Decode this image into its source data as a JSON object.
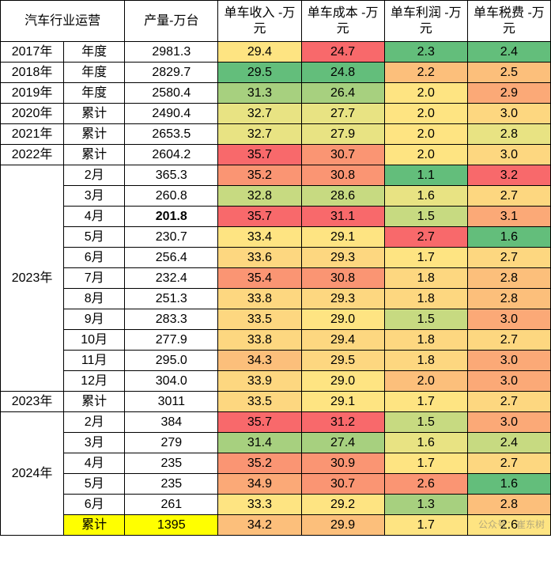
{
  "header": {
    "title_main": "汽车行业运营",
    "col_prod": "产量-万台",
    "col_rev": "单车收入\n-万元",
    "col_cost": "单车成本\n-万元",
    "col_profit": "单车利润\n-万元",
    "col_tax": "单车税费\n-万元"
  },
  "colors": {
    "heat": {
      "g1": "#63BE7B",
      "g2": "#86C77D",
      "g3": "#A7D07F",
      "g4": "#C7DA81",
      "g5": "#E8E383",
      "y1": "#FEE482",
      "y2": "#FDD780",
      "o1": "#FCBF7B",
      "o2": "#FBA977",
      "o3": "#FA9573",
      "r1": "#F8696B"
    }
  },
  "rows": [
    {
      "year": "2017年",
      "period": "年度",
      "prod": "2981.3",
      "rev": {
        "v": "29.4",
        "c": "y1"
      },
      "cost": {
        "v": "24.7",
        "c": "r1"
      },
      "profit": {
        "v": "2.3",
        "c": "g1"
      },
      "tax": {
        "v": "2.4",
        "c": "g1"
      }
    },
    {
      "year": "2018年",
      "period": "年度",
      "prod": "2829.7",
      "rev": {
        "v": "29.5",
        "c": "g1"
      },
      "cost": {
        "v": "24.8",
        "c": "g1"
      },
      "profit": {
        "v": "2.2",
        "c": "o1"
      },
      "tax": {
        "v": "2.5",
        "c": "o1"
      }
    },
    {
      "year": "2019年",
      "period": "年度",
      "prod": "2580.4",
      "rev": {
        "v": "31.3",
        "c": "g3"
      },
      "cost": {
        "v": "26.4",
        "c": "g3"
      },
      "profit": {
        "v": "2.0",
        "c": "y1"
      },
      "tax": {
        "v": "2.9",
        "c": "o2"
      }
    },
    {
      "year": "2020年",
      "period": "累计",
      "prod": "2490.4",
      "rev": {
        "v": "32.7",
        "c": "g5"
      },
      "cost": {
        "v": "27.7",
        "c": "g5"
      },
      "profit": {
        "v": "2.0",
        "c": "y1"
      },
      "tax": {
        "v": "3.0",
        "c": "y2"
      }
    },
    {
      "year": "2021年",
      "period": "累计",
      "prod": "2653.5",
      "rev": {
        "v": "32.7",
        "c": "g5"
      },
      "cost": {
        "v": "27.9",
        "c": "g5"
      },
      "profit": {
        "v": "2.0",
        "c": "y1"
      },
      "tax": {
        "v": "2.8",
        "c": "g5"
      }
    },
    {
      "year": "2022年",
      "period": "累计",
      "prod": "2604.2",
      "rev": {
        "v": "35.7",
        "c": "r1"
      },
      "cost": {
        "v": "30.7",
        "c": "o3"
      },
      "profit": {
        "v": "2.0",
        "c": "y1"
      },
      "tax": {
        "v": "3.0",
        "c": "y2"
      }
    },
    {
      "year": "2023年",
      "yearspan": 11,
      "period": "2月",
      "prod": "365.3",
      "rev": {
        "v": "35.2",
        "c": "o3"
      },
      "cost": {
        "v": "30.8",
        "c": "o3"
      },
      "profit": {
        "v": "1.1",
        "c": "g1"
      },
      "tax": {
        "v": "3.2",
        "c": "r1"
      }
    },
    {
      "period": "3月",
      "prod": "260.8",
      "rev": {
        "v": "32.8",
        "c": "g4"
      },
      "cost": {
        "v": "28.6",
        "c": "g4"
      },
      "profit": {
        "v": "1.6",
        "c": "g5"
      },
      "tax": {
        "v": "2.7",
        "c": "y2"
      }
    },
    {
      "period": "4月",
      "prod": "201.8",
      "prod_bold": true,
      "rev": {
        "v": "35.7",
        "c": "r1"
      },
      "cost": {
        "v": "31.1",
        "c": "r1"
      },
      "profit": {
        "v": "1.5",
        "c": "g4"
      },
      "tax": {
        "v": "3.1",
        "c": "o2"
      }
    },
    {
      "period": "5月",
      "prod": "230.7",
      "rev": {
        "v": "33.4",
        "c": "y1"
      },
      "cost": {
        "v": "29.1",
        "c": "y1"
      },
      "profit": {
        "v": "2.7",
        "c": "r1"
      },
      "tax": {
        "v": "1.6",
        "c": "g1"
      }
    },
    {
      "period": "6月",
      "prod": "256.4",
      "rev": {
        "v": "33.6",
        "c": "y2"
      },
      "cost": {
        "v": "29.3",
        "c": "y2"
      },
      "profit": {
        "v": "1.7",
        "c": "y1"
      },
      "tax": {
        "v": "2.7",
        "c": "y2"
      }
    },
    {
      "period": "7月",
      "prod": "232.4",
      "rev": {
        "v": "35.4",
        "c": "o3"
      },
      "cost": {
        "v": "30.8",
        "c": "o3"
      },
      "profit": {
        "v": "1.8",
        "c": "y2"
      },
      "tax": {
        "v": "2.8",
        "c": "o1"
      }
    },
    {
      "period": "8月",
      "prod": "251.3",
      "rev": {
        "v": "33.8",
        "c": "y2"
      },
      "cost": {
        "v": "29.3",
        "c": "y2"
      },
      "profit": {
        "v": "1.8",
        "c": "y2"
      },
      "tax": {
        "v": "2.8",
        "c": "o1"
      }
    },
    {
      "period": "9月",
      "prod": "283.3",
      "rev": {
        "v": "33.5",
        "c": "y2"
      },
      "cost": {
        "v": "29.0",
        "c": "y1"
      },
      "profit": {
        "v": "1.5",
        "c": "g4"
      },
      "tax": {
        "v": "3.0",
        "c": "o2"
      }
    },
    {
      "period": "10月",
      "prod": "277.9",
      "rev": {
        "v": "33.8",
        "c": "y2"
      },
      "cost": {
        "v": "29.4",
        "c": "y2"
      },
      "profit": {
        "v": "1.8",
        "c": "y2"
      },
      "tax": {
        "v": "2.7",
        "c": "y2"
      }
    },
    {
      "period": "11月",
      "prod": "295.0",
      "rev": {
        "v": "34.3",
        "c": "o1"
      },
      "cost": {
        "v": "29.5",
        "c": "y2"
      },
      "profit": {
        "v": "1.8",
        "c": "y2"
      },
      "tax": {
        "v": "3.0",
        "c": "o2"
      }
    },
    {
      "period": "12月",
      "prod": "304.0",
      "rev": {
        "v": "33.9",
        "c": "y2"
      },
      "cost": {
        "v": "29.0",
        "c": "y1"
      },
      "profit": {
        "v": "2.0",
        "c": "o1"
      },
      "tax": {
        "v": "3.0",
        "c": "o2"
      }
    },
    {
      "year": "2023年",
      "period": "累计",
      "prod": "3011",
      "rev": {
        "v": "33.5",
        "c": "y2"
      },
      "cost": {
        "v": "29.1",
        "c": "y1"
      },
      "profit": {
        "v": "1.7",
        "c": "y1"
      },
      "tax": {
        "v": "2.7",
        "c": "y2"
      }
    },
    {
      "year": "2024年",
      "yearspan": 6,
      "period": "2月",
      "prod": "384",
      "rev": {
        "v": "35.7",
        "c": "r1"
      },
      "cost": {
        "v": "31.2",
        "c": "r1"
      },
      "profit": {
        "v": "1.5",
        "c": "g4"
      },
      "tax": {
        "v": "3.0",
        "c": "o2"
      }
    },
    {
      "period": "3月",
      "prod": "279",
      "rev": {
        "v": "31.4",
        "c": "g3"
      },
      "cost": {
        "v": "27.4",
        "c": "g3"
      },
      "profit": {
        "v": "1.6",
        "c": "g5"
      },
      "tax": {
        "v": "2.4",
        "c": "g4"
      }
    },
    {
      "period": "4月",
      "prod": "235",
      "rev": {
        "v": "35.2",
        "c": "o3"
      },
      "cost": {
        "v": "30.9",
        "c": "o3"
      },
      "profit": {
        "v": "1.7",
        "c": "y1"
      },
      "tax": {
        "v": "2.7",
        "c": "y2"
      }
    },
    {
      "period": "5月",
      "prod": "235",
      "rev": {
        "v": "34.9",
        "c": "o2"
      },
      "cost": {
        "v": "30.7",
        "c": "o3"
      },
      "profit": {
        "v": "2.6",
        "c": "o3"
      },
      "tax": {
        "v": "1.6",
        "c": "g1"
      }
    },
    {
      "period": "6月",
      "prod": "261",
      "rev": {
        "v": "33.3",
        "c": "y1"
      },
      "cost": {
        "v": "29.2",
        "c": "y1"
      },
      "profit": {
        "v": "1.3",
        "c": "g3"
      },
      "tax": {
        "v": "2.8",
        "c": "o1"
      }
    },
    {
      "period": "累计",
      "period_hl": true,
      "prod": "1395",
      "prod_hl": true,
      "rev": {
        "v": "34.2",
        "c": "o1"
      },
      "cost": {
        "v": "29.9",
        "c": "o1"
      },
      "profit": {
        "v": "1.7",
        "c": "y1"
      },
      "tax": {
        "v": "2.6",
        "c": "y1"
      }
    }
  ],
  "watermark": "公众号：崔东树"
}
